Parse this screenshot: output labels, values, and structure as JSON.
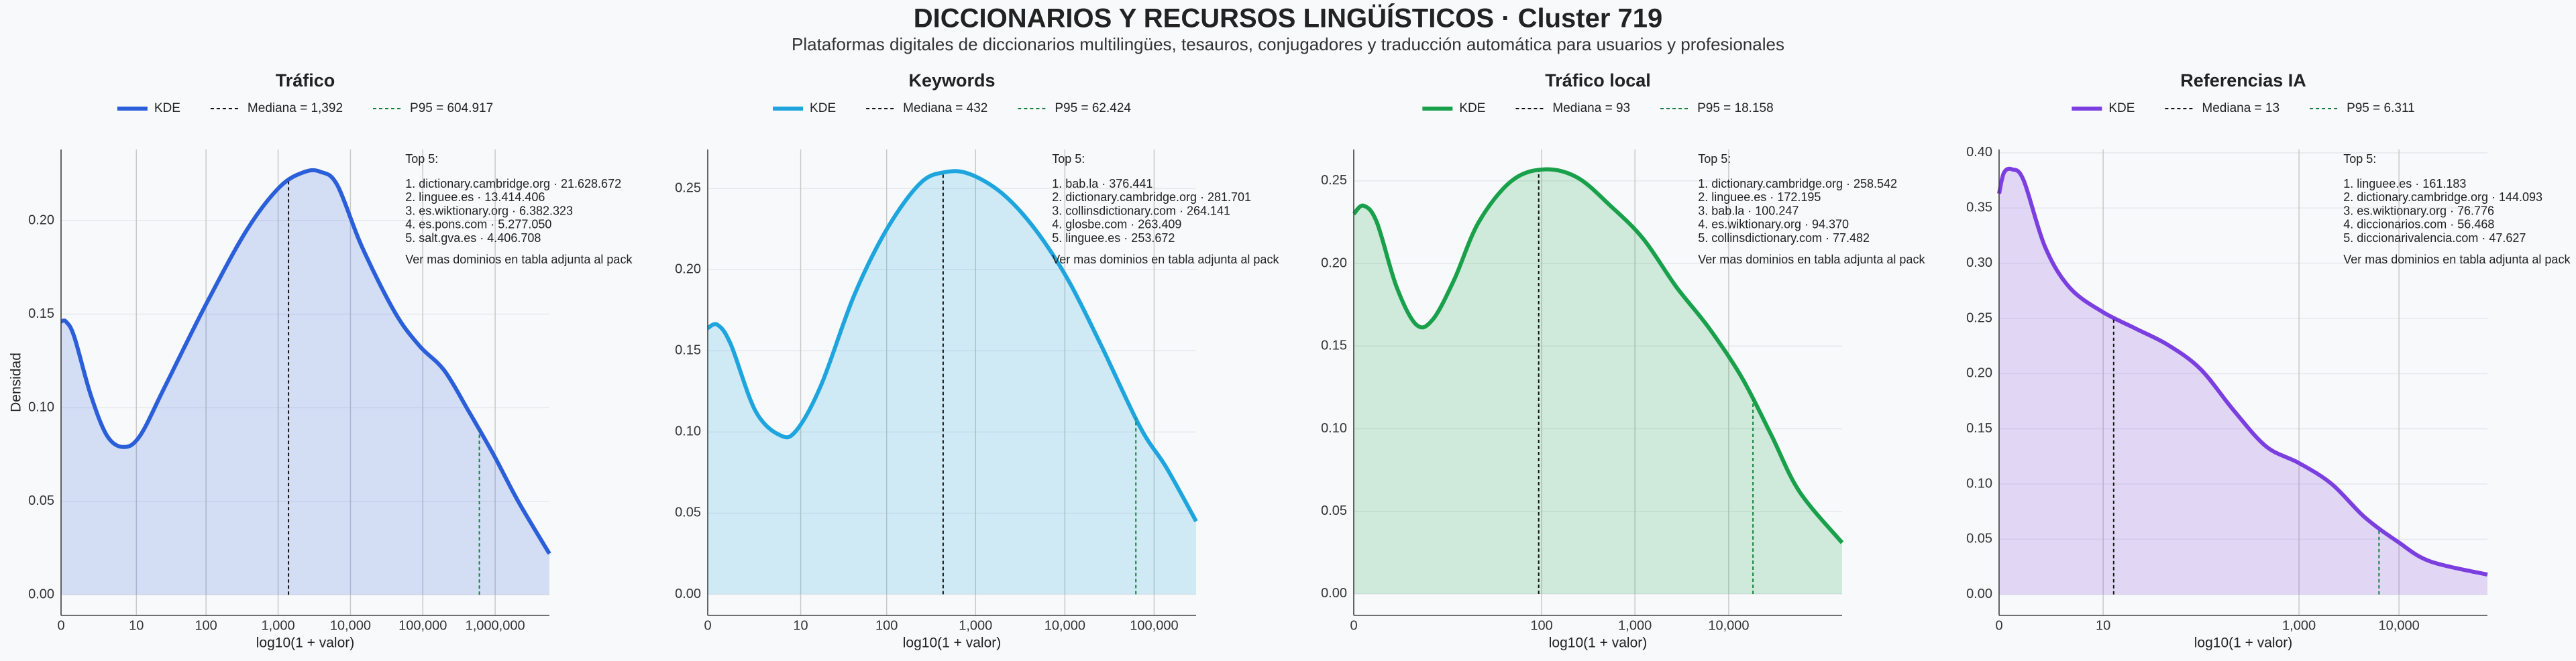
{
  "title": "DICCIONARIOS Y RECURSOS LINGÜÍSTICOS · Cluster 719",
  "subtitle": "Plataformas digitales de diccionarios multilingües, tesauros, conjugadores y traducción automática para usuarios y profesionales",
  "chart_data": [
    {
      "type": "kde",
      "title": "Tráfico",
      "xlabel": "log10(1 + valor)",
      "ylabel": "Densidad",
      "kde_label": "KDE",
      "color": "#2b5fd9",
      "grid": true,
      "x": [
        0,
        0.068,
        0.182,
        0.409,
        0.636,
        0.864,
        1.091,
        1.432,
        2.0,
        2.568,
        3.023,
        3.364,
        3.591,
        3.818,
        4.159,
        4.614,
        4.955,
        5.295,
        5.636,
        5.977,
        6.318,
        6.75
      ],
      "values": [
        0.146,
        0.146,
        0.138,
        0.107,
        0.085,
        0.079,
        0.085,
        0.111,
        0.155,
        0.195,
        0.218,
        0.226,
        0.226,
        0.219,
        0.186,
        0.151,
        0.133,
        0.12,
        0.098,
        0.075,
        0.05,
        0.022
      ],
      "xlim": [
        0,
        6.75
      ],
      "ylim": [
        -0.011,
        0.238
      ],
      "xticks": [
        0,
        {
          "value": 1.041,
          "label": "10"
        },
        {
          "value": 2.004,
          "label": "100"
        },
        {
          "value": 3.0,
          "label": "1,000"
        },
        {
          "value": 4.0,
          "label": "10,000"
        },
        {
          "value": 5.0,
          "label": "100,000"
        },
        {
          "value": 6.0,
          "label": "1,000,000"
        }
      ],
      "yticks": [
        {
          "value": 0,
          "label": "0.00"
        },
        {
          "value": 0.05,
          "label": "0.05"
        },
        {
          "value": 0.1,
          "label": "0.10"
        },
        {
          "value": 0.15,
          "label": "0.15"
        },
        {
          "value": 0.2,
          "label": "0.20"
        }
      ],
      "median": {
        "value": 1392,
        "label": "Mediana = 1,392",
        "color": "#111111"
      },
      "p95": {
        "value": 604917,
        "label": "P95 = 604.917",
        "color": "#15803d"
      },
      "annotation_title": "Top 5:",
      "top5": [
        "1. dictionary.cambridge.org · 21.628.672",
        "2. linguee.es · 13.414.406",
        "3. es.wiktionary.org · 6.382.323",
        "4. es.pons.com · 5.277.050",
        "5. salt.gva.es · 4.406.708"
      ],
      "annotation_note": "Ver mas dominios en tabla adjunta al pack"
    },
    {
      "type": "kde",
      "title": "Keywords",
      "xlabel": "log10(1 + valor)",
      "kde_label": "KDE",
      "color": "#1ea5de",
      "grid": true,
      "x": [
        0,
        0.11,
        0.258,
        0.534,
        0.81,
        0.994,
        1.271,
        1.639,
        2.007,
        2.376,
        2.652,
        2.928,
        3.297,
        3.665,
        4.033,
        4.401,
        4.843,
        5.138,
        5.47
      ],
      "values": [
        0.164,
        0.166,
        0.154,
        0.113,
        0.098,
        0.101,
        0.129,
        0.184,
        0.225,
        0.253,
        0.26,
        0.259,
        0.247,
        0.225,
        0.194,
        0.154,
        0.103,
        0.078,
        0.045
      ],
      "xlim": [
        0,
        5.47
      ],
      "ylim": [
        -0.013,
        0.274
      ],
      "xticks": [
        0,
        {
          "value": 1.041,
          "label": "10"
        },
        {
          "value": 2.004,
          "label": "100"
        },
        {
          "value": 3.0,
          "label": "1,000"
        },
        {
          "value": 4.0,
          "label": "10,000"
        },
        {
          "value": 5.0,
          "label": "100,000"
        }
      ],
      "yticks": [
        {
          "value": 0,
          "label": "0.00"
        },
        {
          "value": 0.05,
          "label": "0.05"
        },
        {
          "value": 0.1,
          "label": "0.10"
        },
        {
          "value": 0.15,
          "label": "0.15"
        },
        {
          "value": 0.2,
          "label": "0.20"
        },
        {
          "value": 0.25,
          "label": "0.25"
        }
      ],
      "median": {
        "value": 432,
        "label": "Mediana = 432",
        "color": "#111111"
      },
      "p95": {
        "value": 62424,
        "label": "P95 = 62.424",
        "color": "#15803d"
      },
      "annotation_title": "Top 5:",
      "top5": [
        "1. bab.la · 376.441",
        "2. dictionary.cambridge.org · 281.701",
        "3. collinsdictionary.com · 264.141",
        "4. glosbe.com · 263.409",
        "5. linguee.es · 253.672"
      ],
      "annotation_note": "Ver mas dominios en tabla adjunta al pack"
    },
    {
      "type": "kde",
      "title": "Tráfico local",
      "xlabel": "log10(1 + valor)",
      "kde_label": "KDE",
      "color": "#18a04a",
      "grid": true,
      "x": [
        0,
        0.105,
        0.246,
        0.456,
        0.667,
        0.842,
        1.07,
        1.333,
        1.684,
        2.035,
        2.386,
        2.737,
        3.088,
        3.439,
        3.789,
        4.14,
        4.456,
        4.754,
        5.21
      ],
      "values": [
        0.23,
        0.235,
        0.225,
        0.186,
        0.163,
        0.166,
        0.19,
        0.225,
        0.25,
        0.257,
        0.252,
        0.235,
        0.215,
        0.186,
        0.161,
        0.131,
        0.096,
        0.062,
        0.031
      ],
      "xlim": [
        0,
        5.21
      ],
      "ylim": [
        -0.013,
        0.269
      ],
      "xticks": [
        0,
        {
          "value": 2.004,
          "label": "100"
        },
        {
          "value": 3.0,
          "label": "1,000"
        },
        {
          "value": 4.0,
          "label": "10,000"
        }
      ],
      "yticks": [
        {
          "value": 0,
          "label": "0.00"
        },
        {
          "value": 0.05,
          "label": "0.05"
        },
        {
          "value": 0.1,
          "label": "0.10"
        },
        {
          "value": 0.15,
          "label": "0.15"
        },
        {
          "value": 0.2,
          "label": "0.20"
        },
        {
          "value": 0.25,
          "label": "0.25"
        }
      ],
      "median": {
        "value": 93,
        "label": "Mediana = 93",
        "color": "#111111"
      },
      "p95": {
        "value": 18158,
        "label": "P95 = 18.158",
        "color": "#15803d"
      },
      "annotation_title": "Top 5:",
      "top5": [
        "1. dictionary.cambridge.org · 258.542",
        "2. linguee.es · 172.195",
        "3. bab.la · 100.247",
        "4. es.wiktionary.org · 94.370",
        "5. collinsdictionary.com · 77.482"
      ],
      "annotation_note": "Ver mas dominios en tabla adjunta al pack"
    },
    {
      "type": "kde",
      "title": "Referencias IA",
      "xlabel": "log10(1 + valor)",
      "kde_label": "KDE",
      "color": "#7b3fe0",
      "grid": true,
      "x": [
        0,
        0.049,
        0.131,
        0.246,
        0.459,
        0.705,
        1.033,
        1.361,
        1.689,
        2.016,
        2.344,
        2.672,
        3.0,
        3.328,
        3.656,
        3.984,
        4.311,
        4.885
      ],
      "values": [
        0.363,
        0.382,
        0.385,
        0.375,
        0.315,
        0.278,
        0.256,
        0.241,
        0.226,
        0.204,
        0.167,
        0.134,
        0.119,
        0.1,
        0.07,
        0.048,
        0.03,
        0.018
      ],
      "xlim": [
        0,
        4.885
      ],
      "ylim": [
        -0.019,
        0.403
      ],
      "xticks": [
        0,
        {
          "value": 1.041,
          "label": "10"
        },
        {
          "value": 3.0,
          "label": "1,000"
        },
        {
          "value": 4.0,
          "label": "10,000"
        }
      ],
      "yticks": [
        {
          "value": 0,
          "label": "0.00"
        },
        {
          "value": 0.05,
          "label": "0.05"
        },
        {
          "value": 0.1,
          "label": "0.10"
        },
        {
          "value": 0.15,
          "label": "0.15"
        },
        {
          "value": 0.2,
          "label": "0.20"
        },
        {
          "value": 0.25,
          "label": "0.25"
        },
        {
          "value": 0.3,
          "label": "0.30"
        },
        {
          "value": 0.35,
          "label": "0.35"
        },
        {
          "value": 0.4,
          "label": "0.40"
        }
      ],
      "median": {
        "value": 13,
        "label": "Mediana = 13",
        "color": "#111111"
      },
      "p95": {
        "value": 6311,
        "label": "P95 = 6.311",
        "color": "#15803d"
      },
      "annotation_title": "Top 5:",
      "top5": [
        "1. linguee.es · 161.183",
        "2. dictionary.cambridge.org · 144.093",
        "3. es.wiktionary.org · 76.776",
        "4. diccionarios.com · 56.468",
        "5. diccionarivalencia.com · 47.627"
      ],
      "annotation_note": "Ver mas dominios en tabla adjunta al pack"
    }
  ]
}
